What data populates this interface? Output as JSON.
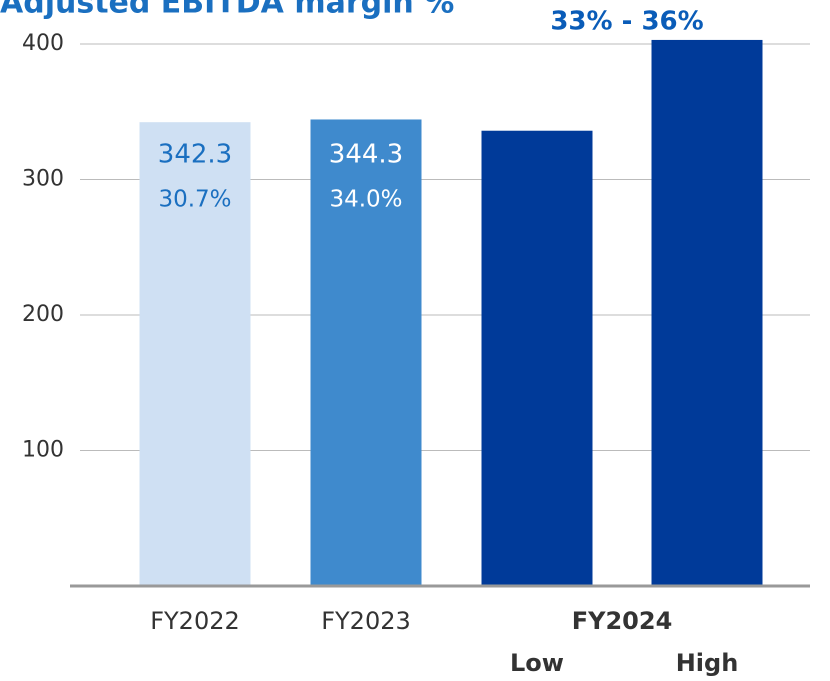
{
  "chart_data": {
    "type": "bar",
    "title": "Adjusted EBITDA margin %",
    "categories": [
      "FY2022",
      "FY2023",
      "Low",
      "High"
    ],
    "group_label": "FY2024",
    "values": [
      342.3,
      344.3,
      336,
      403
    ],
    "value_labels": [
      "342.3",
      "344.3",
      null,
      null
    ],
    "margin_labels": [
      "30.7%",
      "34.0%"
    ],
    "annotation": "33%  -  36%",
    "colors": [
      "#cfe0f3",
      "#3f8acd",
      "#003a99",
      "#003a99"
    ],
    "ylim": [
      0,
      400
    ],
    "yticks": [
      100,
      200,
      300,
      400
    ],
    "grid": true
  }
}
